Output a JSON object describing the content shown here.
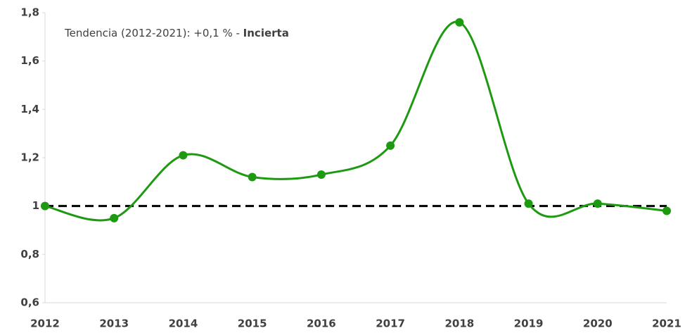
{
  "chart_data": {
    "type": "line",
    "annotation": "Tendencia (2012-2021): +0,1 % - ",
    "annotation_bold": "Incierta",
    "categories": [
      "2012",
      "2013",
      "2014",
      "2015",
      "2016",
      "2017",
      "2018",
      "2019",
      "2020",
      "2021"
    ],
    "series": [
      {
        "name": "Índice",
        "color": "#1e9a12",
        "values": [
          1.0,
          0.95,
          1.21,
          1.12,
          1.13,
          1.25,
          1.76,
          1.01,
          1.01,
          0.98
        ]
      }
    ],
    "reference_line": 1,
    "ylim": [
      0.6,
      1.8
    ],
    "yticks": [
      {
        "value": 0.6,
        "label": "0,6"
      },
      {
        "value": 0.8,
        "label": "0,8"
      },
      1,
      {
        "value": 1.2,
        "label": "1,2"
      },
      {
        "value": 1.4,
        "label": "1,4"
      },
      {
        "value": 1.6,
        "label": "1,6"
      },
      {
        "value": 1.8,
        "label": "1,8"
      }
    ],
    "smooth": true
  }
}
